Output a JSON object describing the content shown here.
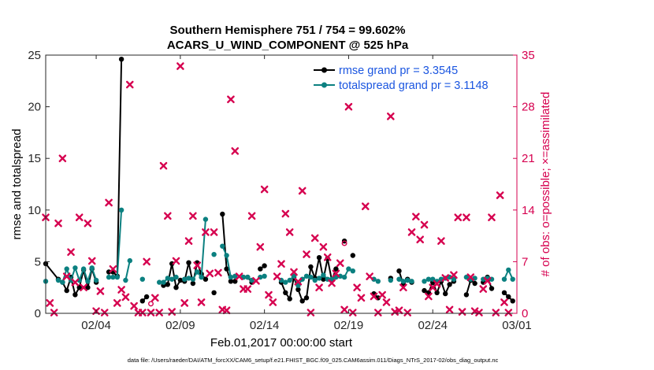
{
  "chart_data": {
    "type": "line",
    "title_line1": "Southern Hemisphere 751 / 754 = 99.602%",
    "title_line2": "ACARS_U_WIND_COMPONENT @ 525 hPa",
    "xlabel": "Feb.01,2017 00:00:00 start",
    "ylabel_left": "rmse and totalspread",
    "ylabel_right": "# of obs: o=possible; ×=assimilated",
    "footer": "data file: /Users/raeder/DAI/ATM_forcXX/CAM6_setup/f.e21.FHIST_BGC.f09_025.CAM6assim.011/Diags_NTrS_2017-02/obs_diag_output.nc",
    "xlim": [
      1,
      29
    ],
    "ylim_left": [
      0,
      25
    ],
    "ylim_right": [
      0,
      35
    ],
    "x_ticks": [
      {
        "value": 4,
        "label": "02/04"
      },
      {
        "value": 9,
        "label": "02/09"
      },
      {
        "value": 14,
        "label": "02/14"
      },
      {
        "value": 19,
        "label": "02/19"
      },
      {
        "value": 24,
        "label": "02/24"
      },
      {
        "value": 29,
        "label": "03/01"
      }
    ],
    "y_ticks_left": [
      "0",
      "5",
      "10",
      "15",
      "20",
      "25"
    ],
    "y_ticks_right": [
      "0",
      "7",
      "14",
      "21",
      "28",
      "35"
    ],
    "legend": {
      "position": "top-right",
      "entries": [
        "rmse grand pr = 3.3545",
        "totalspread grand pr = 3.1148"
      ]
    },
    "colors": {
      "rmse": "#000000",
      "totalspread": "#0b8080",
      "obs": "#d6004f",
      "legend_text": "#1a55e0"
    },
    "series": [
      {
        "name": "rmse",
        "segments": [
          [
            [
              1.0,
              4.8
            ],
            [
              1.75,
              3.3
            ],
            [
              2.0,
              3.0
            ],
            [
              2.25,
              2.2
            ],
            [
              2.5,
              3.5
            ],
            [
              2.75,
              1.8
            ],
            [
              3.0,
              2.5
            ],
            [
              3.25,
              4.2
            ],
            [
              3.5,
              2.5
            ],
            [
              3.75,
              4.3
            ],
            [
              4.0,
              3.0
            ]
          ],
          [
            [
              4.75,
              4.0
            ],
            [
              5.0,
              4.0
            ],
            [
              5.25,
              3.6
            ],
            [
              5.5,
              24.6
            ]
          ],
          [
            [
              6.75,
              1.2
            ],
            [
              7.0,
              1.6
            ]
          ],
          [
            [
              8.0,
              2.7
            ],
            [
              8.25,
              2.8
            ],
            [
              8.5,
              4.8
            ],
            [
              8.75,
              2.5
            ],
            [
              9.0,
              3.2
            ],
            [
              9.25,
              3.1
            ],
            [
              9.5,
              4.9
            ],
            [
              9.75,
              2.9
            ],
            [
              10.0,
              4.9
            ],
            [
              10.25,
              3.8
            ],
            [
              10.5,
              3.3
            ]
          ],
          [
            [
              11.0,
              2.0
            ]
          ],
          [
            [
              11.5,
              9.6
            ],
            [
              11.75,
              4.3
            ],
            [
              12.0,
              3.1
            ],
            [
              12.25,
              3.1
            ]
          ],
          [
            [
              12.75,
              3.5
            ],
            [
              13.0,
              3.5
            ],
            [
              13.25,
              3.0
            ]
          ],
          [
            [
              13.75,
              4.3
            ],
            [
              14.0,
              4.6
            ]
          ],
          [
            [
              15.0,
              3.0
            ],
            [
              15.25,
              2.0
            ],
            [
              15.5,
              1.4
            ],
            [
              15.75,
              3.5
            ],
            [
              16.0,
              2.3
            ],
            [
              16.25,
              1.2
            ],
            [
              16.5,
              1.5
            ],
            [
              16.75,
              4.5
            ],
            [
              17.0,
              3.4
            ],
            [
              17.25,
              5.4
            ],
            [
              17.5,
              3.3
            ],
            [
              17.75,
              5.3
            ],
            [
              18.0,
              3.2
            ],
            [
              18.25,
              4.3
            ]
          ],
          [
            [
              18.75,
              7.0
            ]
          ],
          [
            [
              19.25,
              5.6
            ]
          ],
          [
            [
              20.5,
              1.9
            ],
            [
              20.75,
              1.5
            ]
          ],
          [
            [
              21.5,
              3.4
            ]
          ],
          [
            [
              22.0,
              4.1
            ],
            [
              22.25,
              2.8
            ],
            [
              22.5,
              3.3
            ],
            [
              22.75,
              3.0
            ]
          ],
          [
            [
              23.5,
              2.2
            ],
            [
              23.75,
              2.0
            ],
            [
              24.0,
              3.0
            ],
            [
              24.25,
              2.0
            ],
            [
              24.5,
              3.1
            ],
            [
              24.75,
              1.9
            ],
            [
              25.0,
              2.8
            ],
            [
              25.25,
              3.1
            ]
          ],
          [
            [
              26.0,
              1.8
            ],
            [
              26.25,
              3.2
            ],
            [
              26.5,
              2.9
            ]
          ],
          [
            [
              27.0,
              3.0
            ],
            [
              27.25,
              3.5
            ],
            [
              27.5,
              2.4
            ]
          ],
          [
            [
              28.25,
              2.0
            ],
            [
              28.5,
              1.6
            ],
            [
              28.75,
              1.2
            ]
          ]
        ]
      },
      {
        "name": "totalspread",
        "segments": [
          [
            [
              1.0,
              3.1
            ]
          ],
          [
            [
              1.75,
              3.2
            ],
            [
              2.0,
              3.0
            ],
            [
              2.25,
              4.3
            ],
            [
              2.5,
              3.2
            ],
            [
              2.75,
              4.4
            ],
            [
              3.0,
              3.2
            ],
            [
              3.25,
              4.3
            ],
            [
              3.5,
              3.1
            ],
            [
              3.75,
              4.4
            ],
            [
              4.0,
              3.2
            ]
          ],
          [
            [
              4.75,
              3.5
            ],
            [
              5.0,
              3.5
            ],
            [
              5.25,
              3.5
            ],
            [
              5.5,
              10.0
            ]
          ],
          [
            [
              5.75,
              3.2
            ],
            [
              6.0,
              5.1
            ]
          ],
          [
            [
              6.75,
              3.3
            ]
          ],
          [
            [
              7.75,
              3.0
            ],
            [
              8.0,
              3.0
            ],
            [
              8.25,
              3.4
            ],
            [
              8.5,
              3.3
            ],
            [
              8.75,
              3.5
            ]
          ],
          [
            [
              9.25,
              3.3
            ],
            [
              9.5,
              3.4
            ],
            [
              9.75,
              3.3
            ],
            [
              10.0,
              4.0
            ],
            [
              10.25,
              3.5
            ],
            [
              10.5,
              9.1
            ]
          ],
          [
            [
              11.0,
              5.7
            ]
          ],
          [
            [
              11.5,
              6.5
            ],
            [
              11.75,
              5.6
            ],
            [
              12.0,
              3.5
            ],
            [
              12.25,
              3.6
            ]
          ],
          [
            [
              12.75,
              3.5
            ],
            [
              13.0,
              3.5
            ],
            [
              13.25,
              3.2
            ]
          ],
          [
            [
              13.75,
              3.5
            ],
            [
              14.0,
              3.6
            ]
          ],
          [
            [
              15.0,
              3.2
            ],
            [
              15.25,
              3.0
            ],
            [
              15.5,
              3.2
            ],
            [
              15.75,
              3.6
            ],
            [
              16.0,
              2.7
            ],
            [
              16.25,
              3.3
            ],
            [
              16.5,
              3.6
            ],
            [
              16.75,
              3.5
            ],
            [
              17.0,
              3.2
            ],
            [
              17.25,
              3.4
            ],
            [
              17.5,
              3.7
            ],
            [
              17.75,
              3.3
            ],
            [
              18.0,
              3.3
            ],
            [
              18.25,
              3.5
            ],
            [
              18.5,
              3.6
            ],
            [
              18.75,
              3.5
            ],
            [
              19.0,
              4.3
            ],
            [
              19.25,
              4.1
            ]
          ],
          [
            [
              20.5,
              3.3
            ],
            [
              20.75,
              3.1
            ]
          ],
          [
            [
              21.5,
              3.2
            ]
          ],
          [
            [
              22.0,
              3.3
            ],
            [
              22.25,
              3.1
            ],
            [
              22.5,
              3.2
            ],
            [
              22.75,
              3.1
            ]
          ],
          [
            [
              23.5,
              3.1
            ],
            [
              23.75,
              3.3
            ],
            [
              24.0,
              3.3
            ],
            [
              24.25,
              3.1
            ],
            [
              24.5,
              3.3
            ],
            [
              24.75,
              3.4
            ],
            [
              25.0,
              3.5
            ],
            [
              25.25,
              3.3
            ]
          ],
          [
            [
              26.0,
              3.5
            ],
            [
              26.25,
              3.3
            ],
            [
              26.5,
              3.4
            ]
          ],
          [
            [
              27.0,
              3.3
            ],
            [
              27.25,
              3.4
            ],
            [
              27.5,
              3.3
            ]
          ],
          [
            [
              28.25,
              3.3
            ],
            [
              28.5,
              4.2
            ],
            [
              28.75,
              3.3
            ]
          ]
        ]
      }
    ],
    "obs_assimilated": [
      [
        1.0,
        13.0
      ],
      [
        1.25,
        1.4
      ],
      [
        1.5,
        0.1
      ],
      [
        1.75,
        12.2
      ],
      [
        2.0,
        21.0
      ],
      [
        2.25,
        5.0
      ],
      [
        2.5,
        8.3
      ],
      [
        2.75,
        4.2
      ],
      [
        3.0,
        13.0
      ],
      [
        3.25,
        3.5
      ],
      [
        3.5,
        12.2
      ],
      [
        3.75,
        7.1
      ],
      [
        4.0,
        0.3
      ],
      [
        4.25,
        3.0
      ],
      [
        4.5,
        0.1
      ],
      [
        4.75,
        15.0
      ],
      [
        5.0,
        6.0
      ],
      [
        5.25,
        1.4
      ],
      [
        5.5,
        3.2
      ],
      [
        5.75,
        2.2
      ],
      [
        6.0,
        31.0
      ],
      [
        6.25,
        1.0
      ],
      [
        6.5,
        0.1
      ],
      [
        6.75,
        0.1
      ],
      [
        7.0,
        7.0
      ],
      [
        7.25,
        0.1
      ],
      [
        7.5,
        2.1
      ],
      [
        7.75,
        0.1
      ],
      [
        8.0,
        20.0
      ],
      [
        8.25,
        13.2
      ],
      [
        8.5,
        0.2
      ],
      [
        8.75,
        7.1
      ],
      [
        9.0,
        33.5
      ],
      [
        9.25,
        1.4
      ],
      [
        9.5,
        9.8
      ],
      [
        9.75,
        13.2
      ],
      [
        10.0,
        6.5
      ],
      [
        10.25,
        1.5
      ],
      [
        10.5,
        11.0
      ],
      [
        10.75,
        5.4
      ],
      [
        11.0,
        11.0
      ],
      [
        11.25,
        5.5
      ],
      [
        11.5,
        0.5
      ],
      [
        11.75,
        0.4
      ],
      [
        12.0,
        29.0
      ],
      [
        12.25,
        22.0
      ],
      [
        12.5,
        5.0
      ],
      [
        12.75,
        3.3
      ],
      [
        13.0,
        3.3
      ],
      [
        13.25,
        13.2
      ],
      [
        13.5,
        4.4
      ],
      [
        13.75,
        9.0
      ],
      [
        14.0,
        16.8
      ],
      [
        14.25,
        2.5
      ],
      [
        14.5,
        1.5
      ],
      [
        14.75,
        5.0
      ],
      [
        15.0,
        6.7
      ],
      [
        15.25,
        13.5
      ],
      [
        15.5,
        11.0
      ],
      [
        15.75,
        5.6
      ],
      [
        16.0,
        4.3
      ],
      [
        16.25,
        16.6
      ],
      [
        16.5,
        8.0
      ],
      [
        16.75,
        0.1
      ],
      [
        17.0,
        10.2
      ],
      [
        17.25,
        3.5
      ],
      [
        17.5,
        9.0
      ],
      [
        17.75,
        7.6
      ],
      [
        18.0,
        4.1
      ],
      [
        18.25,
        5.4
      ],
      [
        18.5,
        6.8
      ],
      [
        18.75,
        0.5
      ],
      [
        19.0,
        28.0
      ],
      [
        19.25,
        0.1
      ],
      [
        19.5,
        3.5
      ],
      [
        19.75,
        2.1
      ],
      [
        20.0,
        14.5
      ],
      [
        20.25,
        5.0
      ],
      [
        20.5,
        2.3
      ],
      [
        20.75,
        0.1
      ],
      [
        21.0,
        2.5
      ],
      [
        21.25,
        1.5
      ],
      [
        21.5,
        26.7
      ],
      [
        21.75,
        0.2
      ],
      [
        22.0,
        0.4
      ],
      [
        22.25,
        3.5
      ],
      [
        22.5,
        0.1
      ],
      [
        22.75,
        11.0
      ],
      [
        23.0,
        13.1
      ],
      [
        23.25,
        10.0
      ],
      [
        23.5,
        12.0
      ],
      [
        23.75,
        2.3
      ],
      [
        24.0,
        3.5
      ],
      [
        24.25,
        4.0
      ],
      [
        24.5,
        9.8
      ],
      [
        24.75,
        4.8
      ],
      [
        25.0,
        0.5
      ],
      [
        25.25,
        5.2
      ],
      [
        25.5,
        13.0
      ],
      [
        25.75,
        0.2
      ],
      [
        26.0,
        13.0
      ],
      [
        26.25,
        4.9
      ],
      [
        26.5,
        0.3
      ],
      [
        26.75,
        0.1
      ],
      [
        27.0,
        3.3
      ],
      [
        27.25,
        4.4
      ],
      [
        27.5,
        13.0
      ],
      [
        27.75,
        0.1
      ],
      [
        28.0,
        16.0
      ],
      [
        28.25,
        1.5
      ],
      [
        28.5,
        0.1
      ]
    ],
    "obs_possible": [
      [
        7.25,
        1.3
      ],
      [
        18.75,
        9.5
      ]
    ]
  }
}
